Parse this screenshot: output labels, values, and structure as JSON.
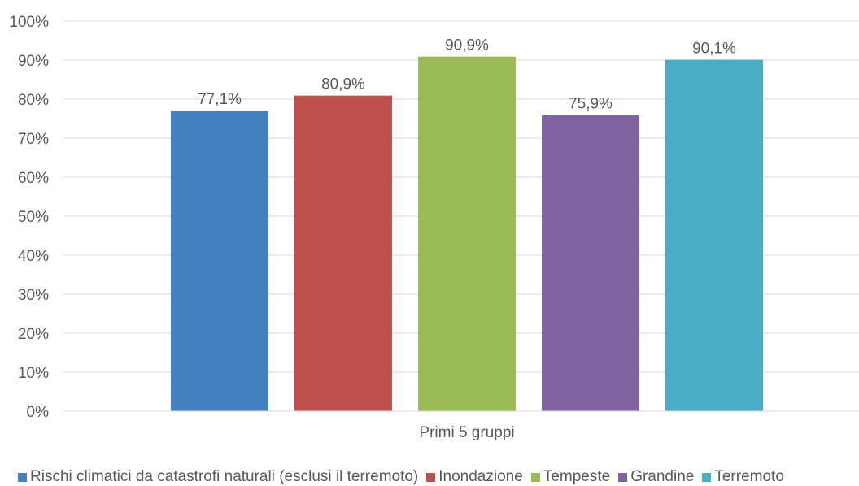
{
  "chart_data": {
    "type": "bar",
    "categories": [
      "Primi 5 gruppi"
    ],
    "series": [
      {
        "name": "Rischi climatici da catastrofi naturali (esclusi il terremoto)",
        "values": [
          77.1
        ],
        "label": "77,1%",
        "color": "#4480C0"
      },
      {
        "name": "Inondazione",
        "values": [
          80.9
        ],
        "label": "80,9%",
        "color": "#C0504D"
      },
      {
        "name": "Tempeste",
        "values": [
          90.9
        ],
        "label": "90,9%",
        "color": "#9BBB59"
      },
      {
        "name": "Grandine",
        "values": [
          75.9
        ],
        "label": "75,9%",
        "color": "#8064A2"
      },
      {
        "name": "Terremoto",
        "values": [
          90.1
        ],
        "label": "90,1%",
        "color": "#4BACC6"
      }
    ],
    "ylim": [
      0,
      100
    ],
    "yticks": [
      "0%",
      "10%",
      "20%",
      "30%",
      "40%",
      "50%",
      "60%",
      "70%",
      "80%",
      "90%",
      "100%"
    ],
    "xlabel": "",
    "ylabel": "",
    "grid": true,
    "legend_position": "bottom"
  }
}
